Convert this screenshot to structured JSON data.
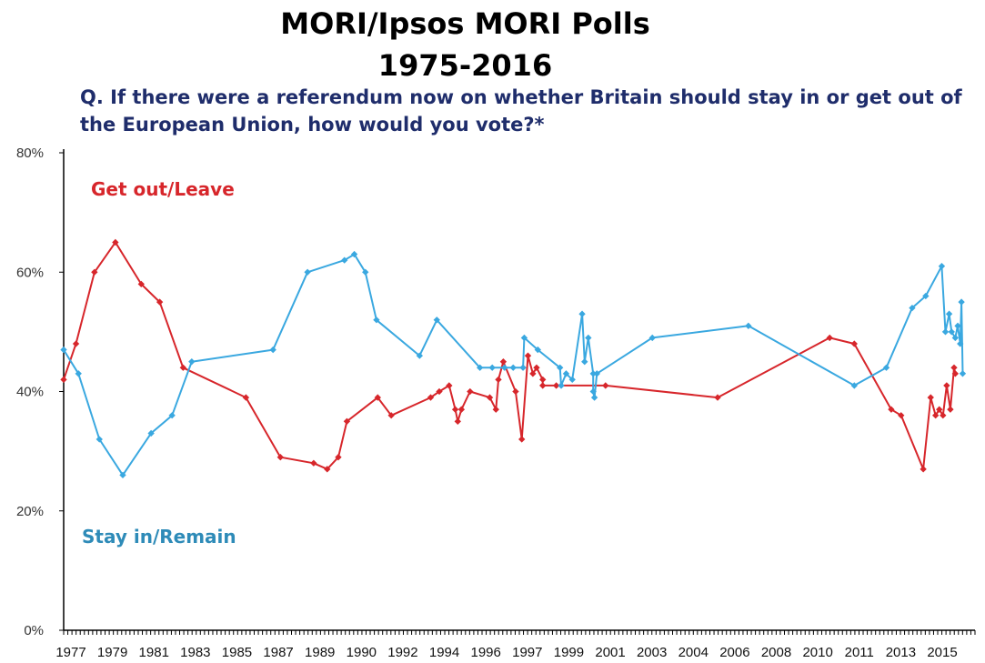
{
  "title_line1": "MORI/Ipsos MORI Polls",
  "title_line2": "1975-2016",
  "question": "Q. If there were a referendum now on whether Britain should stay in or get out of the European Union, how would you vote?*",
  "colors": {
    "leave": "#d7262b",
    "remain": "#3aa8e0",
    "remain_label": "#2e8bb8",
    "question": "#1f2d6b"
  },
  "chart_data": {
    "type": "line",
    "title": "MORI/Ipsos MORI Polls 1975-2016",
    "xlabel": "",
    "ylabel": "",
    "ylim": [
      0,
      80
    ],
    "yticks": [
      "0%",
      "20%",
      "40%",
      "60%",
      "80%"
    ],
    "xticks": [
      "1977",
      "1979",
      "1981",
      "1983",
      "1985",
      "1987",
      "1989",
      "1990",
      "1992",
      "1994",
      "1996",
      "1997",
      "1999",
      "2001",
      "2003",
      "2004",
      "2006",
      "2008",
      "2010",
      "2011",
      "2013",
      "2015"
    ],
    "legend": "inline",
    "series": [
      {
        "name": "Get out/Leave",
        "color": "#d7262b",
        "points": [
          [
            0.0,
            42
          ],
          [
            1.0,
            48
          ],
          [
            2.5,
            60
          ],
          [
            4.2,
            65
          ],
          [
            6.3,
            58
          ],
          [
            7.8,
            55
          ],
          [
            9.7,
            44
          ],
          [
            14.8,
            39
          ],
          [
            17.6,
            29
          ],
          [
            20.3,
            28
          ],
          [
            21.4,
            27
          ],
          [
            22.3,
            29
          ],
          [
            23.0,
            35
          ],
          [
            25.5,
            39
          ],
          [
            26.6,
            36
          ],
          [
            29.8,
            39
          ],
          [
            30.5,
            40
          ],
          [
            31.3,
            41
          ],
          [
            31.8,
            37
          ],
          [
            32.0,
            35
          ],
          [
            32.3,
            37
          ],
          [
            33.0,
            40
          ],
          [
            34.6,
            39
          ],
          [
            35.1,
            37
          ],
          [
            35.3,
            42
          ],
          [
            35.7,
            45
          ],
          [
            36.7,
            40
          ],
          [
            37.2,
            32
          ],
          [
            37.7,
            46
          ],
          [
            38.1,
            43
          ],
          [
            38.4,
            44
          ],
          [
            38.9,
            42
          ],
          [
            38.9,
            41
          ],
          [
            40.0,
            41
          ],
          [
            44.0,
            41
          ],
          [
            53.1,
            39
          ],
          [
            62.2,
            49
          ],
          [
            64.2,
            48
          ],
          [
            67.2,
            37
          ],
          [
            68.0,
            36
          ],
          [
            69.8,
            27
          ],
          [
            70.4,
            39
          ],
          [
            70.8,
            36
          ],
          [
            71.1,
            37
          ],
          [
            71.4,
            36
          ],
          [
            71.7,
            41
          ],
          [
            72.0,
            37
          ],
          [
            72.3,
            44
          ],
          [
            72.4,
            43
          ]
        ]
      },
      {
        "name": "Stay in/Remain",
        "color": "#3aa8e0",
        "points": [
          [
            0.0,
            47
          ],
          [
            1.2,
            43
          ],
          [
            2.9,
            32
          ],
          [
            4.8,
            26
          ],
          [
            7.1,
            33
          ],
          [
            8.8,
            36
          ],
          [
            10.4,
            45
          ],
          [
            17.0,
            47
          ],
          [
            19.8,
            60
          ],
          [
            22.8,
            62
          ],
          [
            23.6,
            63
          ],
          [
            24.5,
            60
          ],
          [
            25.4,
            52
          ],
          [
            28.9,
            46
          ],
          [
            30.3,
            52
          ],
          [
            33.8,
            44
          ],
          [
            34.8,
            44
          ],
          [
            35.8,
            44
          ],
          [
            36.5,
            44
          ],
          [
            37.3,
            44
          ],
          [
            37.4,
            49
          ],
          [
            38.5,
            47
          ],
          [
            40.3,
            44
          ],
          [
            40.4,
            41
          ],
          [
            40.8,
            43
          ],
          [
            41.3,
            42
          ],
          [
            42.1,
            53
          ],
          [
            42.3,
            45
          ],
          [
            42.6,
            49
          ],
          [
            43.0,
            43
          ],
          [
            43.0,
            40
          ],
          [
            43.1,
            39
          ],
          [
            43.3,
            43
          ],
          [
            47.8,
            49
          ],
          [
            55.6,
            51
          ],
          [
            64.2,
            41
          ],
          [
            66.8,
            44
          ],
          [
            68.9,
            54
          ],
          [
            70.0,
            56
          ],
          [
            71.3,
            61
          ],
          [
            71.6,
            50
          ],
          [
            71.9,
            53
          ],
          [
            72.1,
            50
          ],
          [
            72.4,
            49
          ],
          [
            72.6,
            51
          ],
          [
            72.8,
            48
          ],
          [
            72.9,
            55
          ],
          [
            73.0,
            43
          ]
        ]
      }
    ]
  }
}
